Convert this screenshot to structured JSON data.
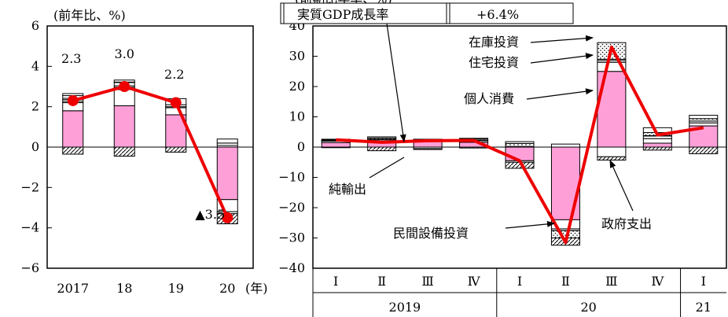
{
  "chart_data": [
    {
      "type": "bar",
      "stacked": true,
      "overlay_line": true,
      "unit_label": "(前年比、%)",
      "x_unit": "(年)",
      "categories": [
        "2017",
        "18",
        "19",
        "20"
      ],
      "ylim": [
        -6,
        6
      ],
      "yticks": [
        -6,
        -4,
        -2,
        0,
        2,
        4,
        6
      ],
      "ytick_labels": [
        "−6",
        "−4",
        "−2",
        "0",
        "2",
        "4",
        "6"
      ],
      "components": [
        {
          "key": "consumption",
          "values": [
            1.8,
            2.05,
            1.6,
            -2.6
          ],
          "color": "#ff9fd8",
          "pattern": "solid"
        },
        {
          "key": "equipment",
          "values": [
            0.4,
            0.8,
            0.35,
            -0.6
          ],
          "color": "#ffffff",
          "pattern": "solid"
        },
        {
          "key": "housing",
          "values": [
            0.15,
            0.12,
            0.05,
            -0.1
          ],
          "color": "#ffffff",
          "pattern": "hstripe"
        },
        {
          "key": "inventory",
          "values": [
            0.2,
            0.25,
            0.1,
            0.2
          ],
          "color": "#ffffff",
          "pattern": "hstripe"
        },
        {
          "key": "government",
          "values": [
            0.1,
            0.1,
            0.3,
            0.2
          ],
          "color": "#ffffff",
          "pattern": "solid"
        },
        {
          "key": "net_exports",
          "values": [
            -0.35,
            -0.45,
            -0.25,
            -0.5
          ],
          "color": "#ffffff",
          "pattern": "diag"
        }
      ],
      "gdp_line": {
        "values": [
          2.3,
          3.0,
          2.2,
          -3.5
        ],
        "color": "#ee0000"
      },
      "data_labels": [
        "2.3",
        "3.0",
        "2.2",
        "▲3.5"
      ]
    },
    {
      "type": "bar",
      "stacked": true,
      "overlay_line": true,
      "unit_label_partial": "(前期比年率、%)",
      "categories": [
        "Ⅰ",
        "Ⅱ",
        "Ⅲ",
        "Ⅳ",
        "Ⅰ",
        "Ⅱ",
        "Ⅲ",
        "Ⅳ",
        "Ⅰ"
      ],
      "year_groups": [
        {
          "label": "2019",
          "span": 4
        },
        {
          "label": "20",
          "span": 4
        },
        {
          "label": "21",
          "span": 1
        }
      ],
      "ylim": [
        -40,
        40
      ],
      "yticks": [
        -40,
        -30,
        -20,
        -10,
        0,
        10,
        20,
        30,
        40
      ],
      "ytick_labels": [
        "−40",
        "−30",
        "−20",
        "−10",
        "0",
        "10",
        "20",
        "30",
        "40"
      ],
      "legend": {
        "name": "実質GDP成長率",
        "value": "+6.4%"
      },
      "components": [
        {
          "key": "consumption",
          "values": [
            1.5,
            1.8,
            2.2,
            1.6,
            -4.5,
            -24,
            25,
            1.3,
            7
          ],
          "color": "#ff9fd8",
          "pattern": "solid",
          "label": "個人消費"
        },
        {
          "key": "equipment",
          "values": [
            0.5,
            0.6,
            -0.5,
            0.5,
            -0.5,
            -3,
            3,
            1.5,
            1.0
          ],
          "color": "#ffffff",
          "pattern": "solid",
          "label": "民間設備投資"
        },
        {
          "key": "housing",
          "values": [
            0.2,
            0.2,
            0.2,
            0.2,
            0.2,
            -0.6,
            1.0,
            1.0,
            0.6
          ],
          "color": "#ffffff",
          "pattern": "hstripe",
          "label": "住宅投資"
        },
        {
          "key": "inventory",
          "values": [
            0.2,
            0.4,
            -0.3,
            0.4,
            1.0,
            -2.4,
            5.5,
            1.0,
            0.8
          ],
          "color": "#ffffff",
          "pattern": "dots",
          "label": "在庫投資"
        },
        {
          "key": "government",
          "values": [
            0.2,
            0.4,
            0.1,
            0.2,
            0.6,
            1.0,
            -3.2,
            1.6,
            1.1
          ],
          "color": "#ffffff",
          "pattern": "solid",
          "label": "政府支出"
        },
        {
          "key": "net_exports",
          "values": [
            -0.2,
            -1.2,
            0.1,
            -0.3,
            -2.0,
            -2.4,
            -1.1,
            -1.0,
            -2.2
          ],
          "color": "#ffffff",
          "pattern": "diag",
          "label": "純輸出"
        }
      ],
      "gdp_line": {
        "values": [
          2.4,
          1.6,
          2.1,
          2.2,
          -4.5,
          -31.5,
          33.0,
          4.0,
          6.4
        ],
        "color": "#ee0000"
      }
    }
  ]
}
